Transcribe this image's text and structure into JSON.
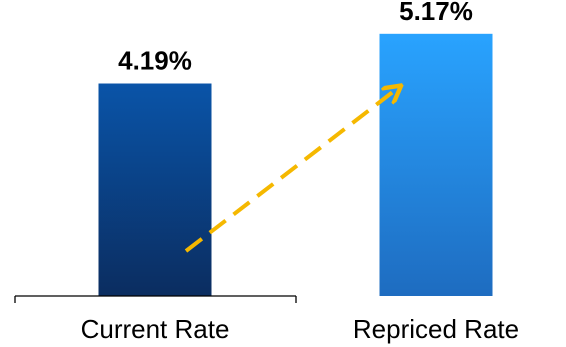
{
  "chart_data": {
    "type": "bar",
    "categories": [
      "Current Rate",
      "Repriced Rate"
    ],
    "values": [
      4.19,
      5.17
    ],
    "value_labels": [
      "4.19%",
      "5.17%"
    ],
    "title": "",
    "xlabel": "",
    "ylabel": "",
    "ylim": [
      0,
      5.6
    ],
    "grid": false,
    "legend": "none",
    "annotation": "dashed arrow rising from Current Rate bar to Repriced Rate bar",
    "colors": {
      "current_top": "#0a54a8",
      "current_bottom": "#0b2d60",
      "repriced_top": "#29a3ff",
      "repriced_bottom": "#1e6cc0",
      "arrow": "#f5b800",
      "axis": "#000000"
    }
  }
}
